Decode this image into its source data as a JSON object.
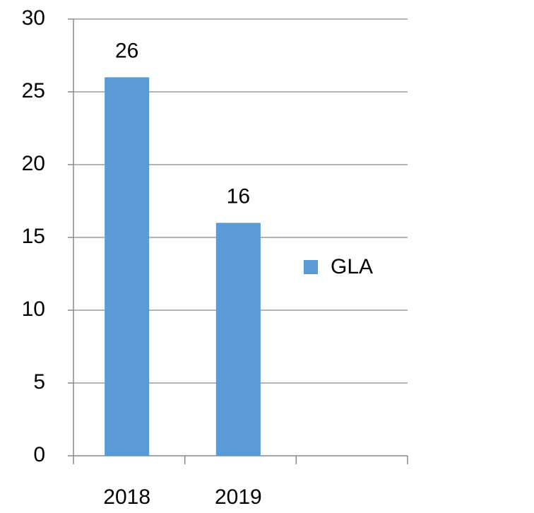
{
  "chart_data": {
    "type": "bar",
    "categories": [
      "2018",
      "2019",
      null
    ],
    "series": [
      {
        "name": "GLA",
        "color": "#5b9bd5",
        "values": [
          26,
          16,
          null
        ]
      }
    ],
    "ylim": [
      0,
      30
    ],
    "yticks": [
      0,
      5,
      10,
      15,
      20,
      25,
      30
    ],
    "grid": true,
    "legend": "right",
    "data_labels": true
  }
}
